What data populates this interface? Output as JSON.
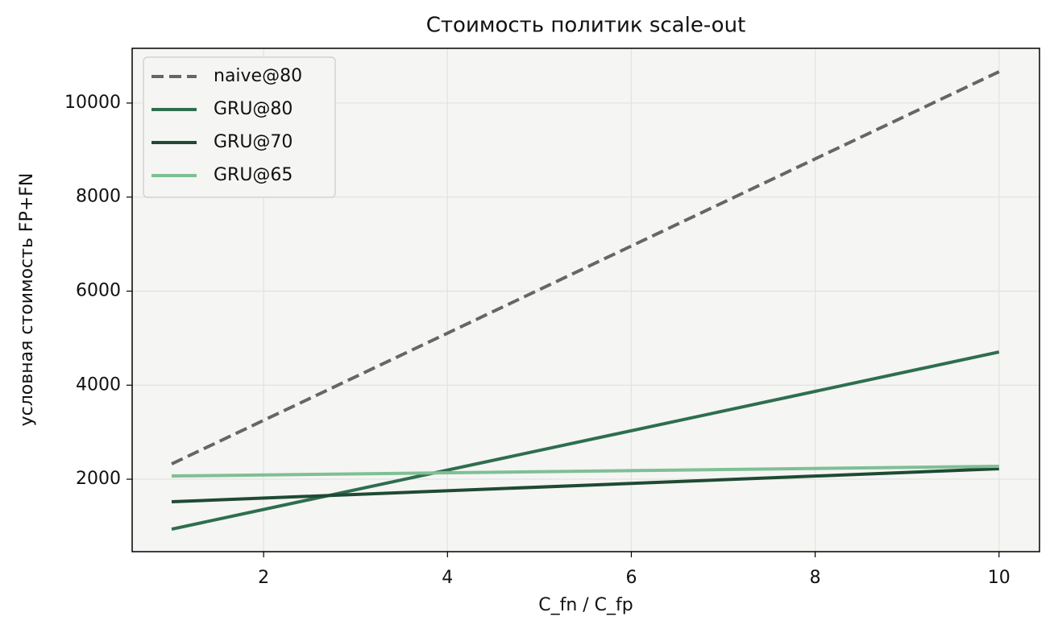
{
  "chart_data": {
    "type": "line",
    "title": "Стоимость политик scale-out",
    "xlabel": "C_fn / C_fp",
    "ylabel": "условная стоимость FP+FN",
    "x": [
      1,
      10
    ],
    "series": [
      {
        "name": "naive@80",
        "color": "#666666",
        "linestyle": "dashed",
        "values": [
          2325,
          10667
        ]
      },
      {
        "name": "GRU@80",
        "color": "#2e6e4e",
        "linestyle": "solid",
        "values": [
          938,
          4706
        ]
      },
      {
        "name": "GRU@70",
        "color": "#1f4a33",
        "linestyle": "solid",
        "values": [
          1520,
          2223
        ]
      },
      {
        "name": "GRU@65",
        "color": "#7fbf95",
        "linestyle": "solid",
        "values": [
          2068,
          2274
        ]
      }
    ],
    "xlim": [
      0.57,
      10.44
    ],
    "ylim": [
      459,
      11164
    ],
    "xticks": [
      2,
      4,
      6,
      8,
      10
    ],
    "yticks": [
      2000,
      4000,
      6000,
      8000,
      10000
    ],
    "grid": true,
    "legend": "upper left"
  }
}
